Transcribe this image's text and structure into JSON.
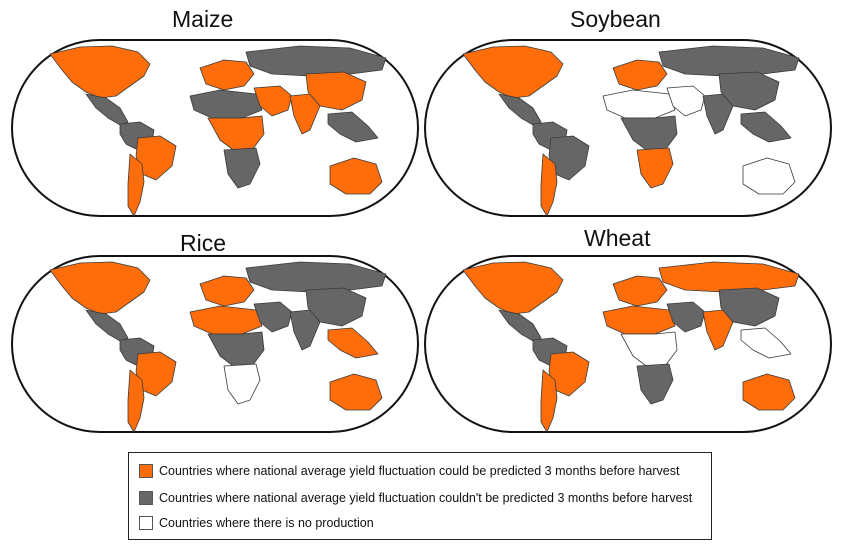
{
  "colors": {
    "predictable": "#ff6d0b",
    "not_predictable": "#666666",
    "no_production": "#ffffff",
    "outline": "#111111"
  },
  "panels": {
    "maize": {
      "title": "Maize"
    },
    "soybean": {
      "title": "Soybean"
    },
    "rice": {
      "title": "Rice"
    },
    "wheat": {
      "title": "Wheat"
    }
  },
  "legend": {
    "predictable": "Countries  where national average yield fluctuation could be predicted 3 months before harvest",
    "not_predictable": "Countries where national average yield fluctuation couldn't be predicted 3 months before harvest",
    "no_production": "Countries where there is no production"
  },
  "regions": {
    "maize": {
      "north_america": "predictable",
      "central_america": "not_predictable",
      "south_america_north": "not_predictable",
      "brazil": "predictable",
      "south_america_south": "predictable",
      "europe": "predictable",
      "russia": "not_predictable",
      "africa_north": "not_predictable",
      "africa_central": "predictable",
      "africa_south": "not_predictable",
      "middle_east": "predictable",
      "india": "predictable",
      "china": "predictable",
      "se_asia": "not_predictable",
      "australia": "predictable"
    },
    "soybean": {
      "north_america": "predictable",
      "central_america": "not_predictable",
      "south_america_north": "not_predictable",
      "brazil": "not_predictable",
      "south_america_south": "predictable",
      "europe": "predictable",
      "russia": "not_predictable",
      "africa_north": "no_production",
      "africa_central": "not_predictable",
      "africa_south": "predictable",
      "middle_east": "no_production",
      "india": "not_predictable",
      "china": "not_predictable",
      "se_asia": "not_predictable",
      "australia": "no_production"
    },
    "rice": {
      "north_america": "predictable",
      "central_america": "not_predictable",
      "south_america_north": "not_predictable",
      "brazil": "predictable",
      "south_america_south": "predictable",
      "europe": "predictable",
      "russia": "not_predictable",
      "africa_north": "predictable",
      "africa_central": "not_predictable",
      "africa_south": "no_production",
      "middle_east": "not_predictable",
      "india": "not_predictable",
      "china": "not_predictable",
      "se_asia": "predictable",
      "australia": "predictable"
    },
    "wheat": {
      "north_america": "predictable",
      "central_america": "not_predictable",
      "south_america_north": "not_predictable",
      "brazil": "predictable",
      "south_america_south": "predictable",
      "europe": "predictable",
      "russia": "predictable",
      "africa_north": "predictable",
      "africa_central": "no_production",
      "africa_south": "not_predictable",
      "middle_east": "not_predictable",
      "india": "predictable",
      "china": "not_predictable",
      "se_asia": "no_production",
      "australia": "predictable"
    }
  }
}
